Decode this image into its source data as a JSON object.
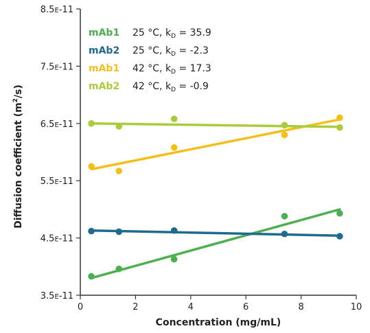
{
  "chart_data": {
    "type": "scatter",
    "xlabel": "Concentration (mg/mL)",
    "ylabel": "Diffusion coefficient (m²/s)",
    "xlim": [
      0,
      10
    ],
    "ylim": [
      3.5e-11,
      8.5e-11
    ],
    "x_ticks": [
      "0",
      "2",
      "4",
      "6",
      "8",
      "10"
    ],
    "y_tick_values": [
      3.5e-11,
      4.5e-11,
      5.5e-11,
      6.5e-11,
      7.5e-11,
      8.5e-11
    ],
    "y_ticks": [
      {
        "mantissa": "3.5",
        "exp": "-11"
      },
      {
        "mantissa": "4.5",
        "exp": "-11"
      },
      {
        "mantissa": "5.5",
        "exp": "-11"
      },
      {
        "mantissa": "6.5",
        "exp": "-11"
      },
      {
        "mantissa": "7.5",
        "exp": "-11"
      },
      {
        "mantissa": "8.5",
        "exp": "-11"
      }
    ],
    "e_label": "E",
    "grid": false,
    "legend_position": "top-left",
    "series": [
      {
        "name": "mAb1",
        "condition": "25 °C, k",
        "sub": "D",
        "kd": "= 35.9",
        "color": "#4caf50",
        "x": [
          0.4,
          1.4,
          3.4,
          7.4,
          9.4
        ],
        "y": [
          3.83e-11,
          3.96e-11,
          4.13e-11,
          4.88e-11,
          4.93e-11
        ],
        "fit": {
          "x": [
            0.4,
            9.4
          ],
          "y": [
            3.8e-11,
            5e-11
          ]
        }
      },
      {
        "name": "mAb2",
        "condition": "25 °C, k",
        "sub": "D",
        "kd": "= -2.3",
        "color": "#1f6b8e",
        "x": [
          0.4,
          1.4,
          3.4,
          7.4,
          9.4
        ],
        "y": [
          4.62e-11,
          4.61e-11,
          4.63e-11,
          4.57e-11,
          4.53e-11
        ],
        "fit": {
          "x": [
            0.4,
            9.4
          ],
          "y": [
            4.63e-11,
            4.54e-11
          ]
        }
      },
      {
        "name": "mAb1",
        "condition": "42 °C, k",
        "sub": "D",
        "kd": "= 17.3",
        "color": "#f5bf1b",
        "x": [
          0.4,
          1.4,
          3.4,
          7.4,
          9.4
        ],
        "y": [
          5.75e-11,
          5.67e-11,
          6.08e-11,
          6.3e-11,
          6.6e-11
        ],
        "fit": {
          "x": [
            0.4,
            9.4
          ],
          "y": [
            5.7e-11,
            6.57e-11
          ]
        }
      },
      {
        "name": "mAb2",
        "condition": "42 °C, k",
        "sub": "D",
        "kd": "= -0.9",
        "color": "#a9cd3a",
        "x": [
          0.4,
          1.4,
          3.4,
          7.4,
          9.4
        ],
        "y": [
          6.5e-11,
          6.45e-11,
          6.58e-11,
          6.47e-11,
          6.43e-11
        ],
        "fit": {
          "x": [
            0.4,
            9.4
          ],
          "y": [
            6.5e-11,
            6.44e-11
          ]
        }
      }
    ]
  }
}
